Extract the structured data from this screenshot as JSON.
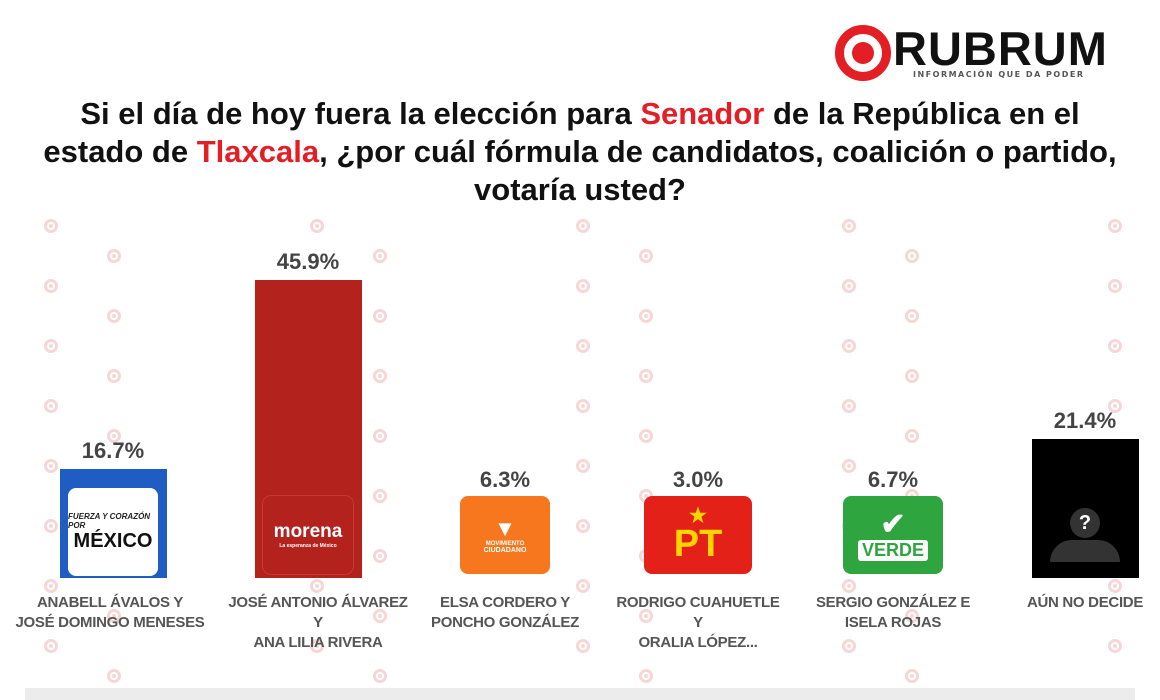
{
  "brand": {
    "name": "RUBRUM",
    "tagline": "INFORMACIÓN QUE DA PODER",
    "watermark": "RUBRUM"
  },
  "title": {
    "parts": [
      {
        "text": "Si el día de hoy fuera la elección para ",
        "hl": false
      },
      {
        "text": "Senador",
        "hl": true
      },
      {
        "text": " de la República en el estado de ",
        "hl": false
      },
      {
        "text": "Tlaxcala",
        "hl": true
      },
      {
        "text": ", ¿por cuál fórmula de candidatos, coalición o partido, votaría usted?",
        "hl": false
      }
    ]
  },
  "colors": {
    "accent": "#e41e25"
  },
  "chart_data": {
    "type": "bar",
    "categories": [
      "ANABELL ÁVALOS Y JOSÉ DOMINGO MENESES",
      "JOSÉ ANTONIO ÁLVAREZ Y ANA LILIA RIVERA",
      "ELSA CORDERO Y PONCHO GONZÁLEZ",
      "RODRIGO CUAHUETLE Y ORALIA LÓPEZ...",
      "SERGIO GONZÁLEZ E ISELA ROJAS",
      "AÚN NO DECIDE"
    ],
    "label_lines": [
      [
        "ANABELL ÁVALOS Y",
        "JOSÉ DOMINGO MENESES"
      ],
      [
        "JOSÉ ANTONIO ÁLVAREZ",
        "Y",
        "ANA LILIA RIVERA"
      ],
      [
        "ELSA CORDERO Y",
        "PONCHO GONZÁLEZ"
      ],
      [
        "RODRIGO CUAHUETLE",
        "Y",
        "ORALIA LÓPEZ..."
      ],
      [
        "SERGIO GONZÁLEZ E",
        "ISELA ROJAS"
      ],
      [
        "AÚN NO DECIDE"
      ]
    ],
    "values": [
      16.7,
      45.9,
      6.3,
      3.0,
      6.7,
      21.4
    ],
    "value_labels": [
      "16.7%",
      "45.9%",
      "6.3%",
      "3.0%",
      "6.7%",
      "21.4%"
    ],
    "bar_colors": [
      "#1f5cc4",
      "#b3221c",
      "#f7771f",
      "#e32119",
      "#2fa540",
      "#000000"
    ],
    "party_logos": [
      {
        "name": "Fuerza y Corazón por México",
        "text": [
          "FUERZA Y CORAZÓN POR",
          "MÉXICO"
        ]
      },
      {
        "name": "morena",
        "text": [
          "morena",
          "La esperanza de México"
        ]
      },
      {
        "name": "Movimiento Ciudadano",
        "text": [
          "MOVIMIENTO",
          "CIUDADANO"
        ]
      },
      {
        "name": "PT",
        "text": [
          "PT"
        ]
      },
      {
        "name": "Verde",
        "text": [
          "VERDE"
        ]
      },
      {
        "name": "undecided",
        "text": [
          "?"
        ]
      }
    ],
    "ylim": [
      0,
      50
    ],
    "grid": false,
    "title": "",
    "xlabel": "",
    "ylabel": ""
  }
}
